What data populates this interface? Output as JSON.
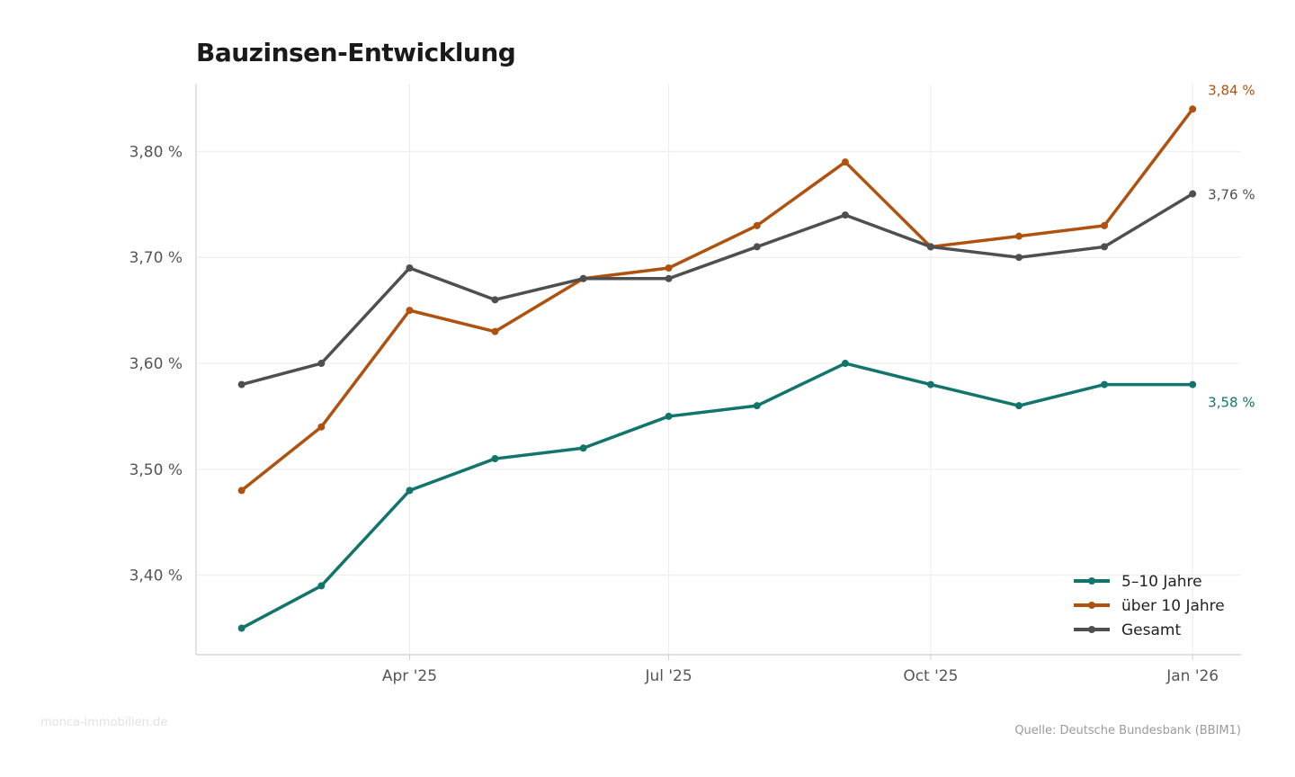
{
  "chart_data": {
    "type": "line",
    "title": "Bauzinsen-Entwicklung",
    "xlabel": "",
    "ylabel": "",
    "x": [
      "2025-02-01",
      "2025-03-01",
      "2025-04-01",
      "2025-05-01",
      "2025-06-01",
      "2025-07-01",
      "2025-08-01",
      "2025-09-01",
      "2025-10-01",
      "2025-11-01",
      "2025-12-01",
      "2026-01-01"
    ],
    "xlim": [
      "2025-01-16",
      "2026-01-18"
    ],
    "ylim": [
      3.325,
      3.864
    ],
    "x_ticks": [
      {
        "date": "2025-04-01",
        "label": "Apr '25"
      },
      {
        "date": "2025-07-01",
        "label": "Jul '25"
      },
      {
        "date": "2025-10-01",
        "label": "Oct '25"
      },
      {
        "date": "2026-01-01",
        "label": "Jan '26"
      }
    ],
    "y_ticks": [
      {
        "value": 3.4,
        "label": "3,40 %"
      },
      {
        "value": 3.5,
        "label": "3,50 %"
      },
      {
        "value": 3.6,
        "label": "3,60 %"
      },
      {
        "value": 3.7,
        "label": "3,70 %"
      },
      {
        "value": 3.8,
        "label": "3,80 %"
      }
    ],
    "grid": true,
    "legend_position": "bottom-right",
    "series": [
      {
        "name": "5–10 Jahre",
        "color": "#11756b",
        "values": [
          3.35,
          3.39,
          3.48,
          3.51,
          3.52,
          3.55,
          3.56,
          3.6,
          3.58,
          3.56,
          3.58,
          3.58
        ],
        "end_label": "3,58 %"
      },
      {
        "name": "über 10 Jahre",
        "color": "#b0520f",
        "values": [
          3.48,
          3.54,
          3.65,
          3.63,
          3.68,
          3.69,
          3.73,
          3.79,
          3.71,
          3.72,
          3.73,
          3.84
        ],
        "end_label": "3,84 %"
      },
      {
        "name": "Gesamt",
        "color": "#4f4f4f",
        "values": [
          3.58,
          3.6,
          3.69,
          3.66,
          3.68,
          3.68,
          3.71,
          3.74,
          3.71,
          3.7,
          3.71,
          3.76
        ],
        "end_label": "3,76 %"
      }
    ]
  },
  "footer": {
    "watermark": "monca-immobilien.de",
    "source": "Quelle: Deutsche Bundesbank (BBIM1)"
  }
}
